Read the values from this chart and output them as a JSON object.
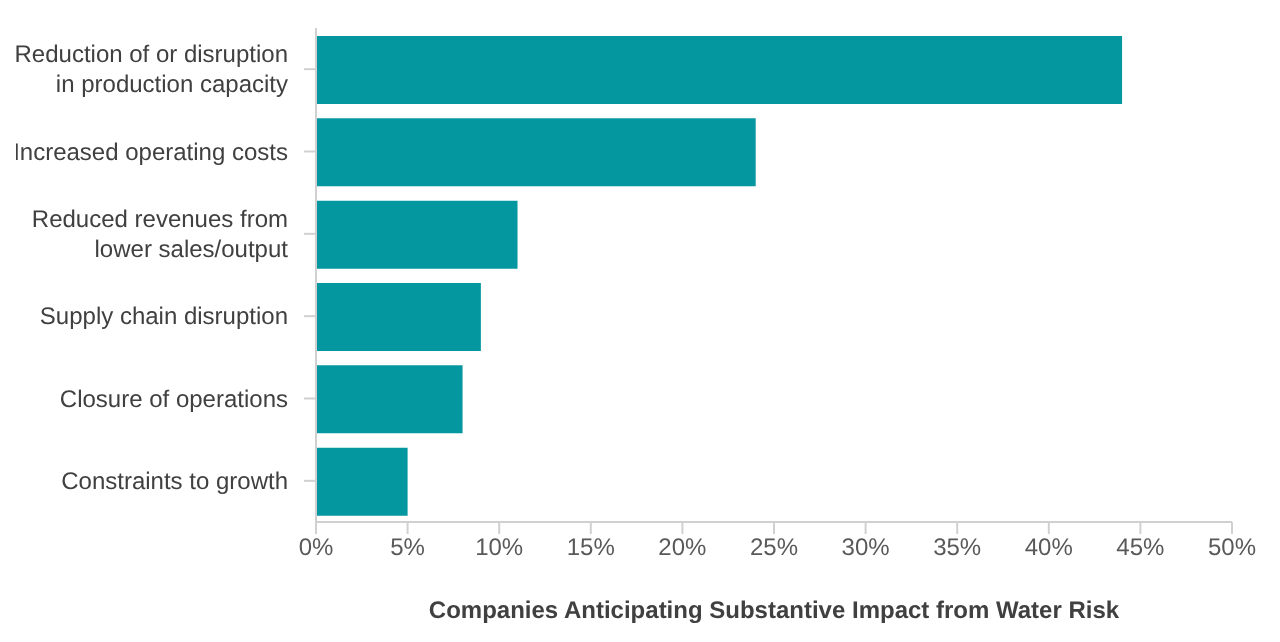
{
  "chart_data": {
    "type": "bar",
    "orientation": "horizontal",
    "xlabel": "Companies Anticipating Substantive Impact from Water Risk",
    "categories": [
      "Reduction of or disruption in production capacity",
      "Increased operating costs",
      "Reduced revenues from lower sales/output",
      "Supply chain disruption",
      "Closure of operations",
      "Constraints to growth"
    ],
    "values": [
      44,
      24,
      11,
      9,
      8,
      5
    ],
    "color": "#05979f",
    "xlim": [
      0,
      50
    ],
    "xticks": [
      {
        "value": 0,
        "label": "0%"
      },
      {
        "value": 5,
        "label": "5%"
      },
      {
        "value": 10,
        "label": "10%"
      },
      {
        "value": 15,
        "label": "15%"
      },
      {
        "value": 20,
        "label": "20%"
      },
      {
        "value": 25,
        "label": "25%"
      },
      {
        "value": 30,
        "label": "30%"
      },
      {
        "value": 35,
        "label": "35%"
      },
      {
        "value": 40,
        "label": "40%"
      },
      {
        "value": 45,
        "label": "45%"
      },
      {
        "value": 50,
        "label": "50%"
      }
    ],
    "grid": false,
    "legend": false
  }
}
